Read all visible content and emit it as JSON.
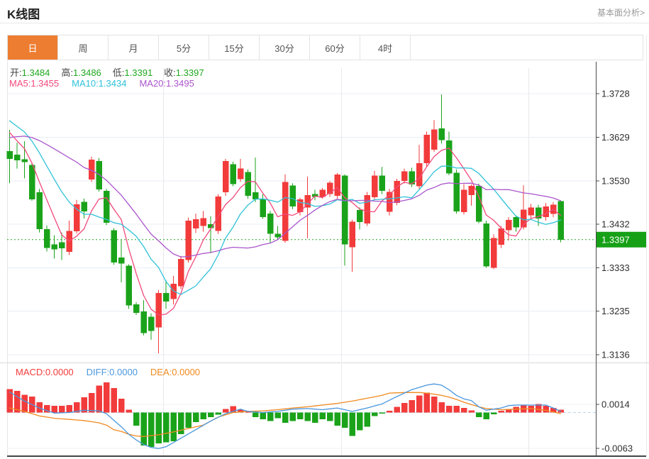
{
  "header": {
    "title": "K线图",
    "link": "基本面分析>"
  },
  "tabs": {
    "items": [
      "日",
      "周",
      "月",
      "5分",
      "15分",
      "30分",
      "60分",
      "4时"
    ],
    "selected_index": 0
  },
  "info": {
    "ohlc": [
      {
        "label": "开:",
        "value": "1.3484"
      },
      {
        "label": "高:",
        "value": "1.3486"
      },
      {
        "label": "低:",
        "value": "1.3391"
      },
      {
        "label": "收:",
        "value": "1.3397"
      }
    ],
    "ma": [
      {
        "label": "MA5:",
        "value": "1.3455"
      },
      {
        "label": "MA10:",
        "value": "1.3434"
      },
      {
        "label": "MA20:",
        "value": "1.3495"
      }
    ],
    "macd": [
      {
        "label": "MACD:",
        "value": "0.0000"
      },
      {
        "label": "DIFF:",
        "value": "0.0000"
      },
      {
        "label": "DEA:",
        "value": "0.0000"
      }
    ]
  },
  "colors": {
    "up": "#f23b3b",
    "down": "#1aa31a",
    "ohlc_value": "#1fa81f",
    "ma": [
      "#f2497c",
      "#2fc2d8",
      "#aa55cc"
    ],
    "macd_labels": [
      "#f23b3b",
      "#4a97dd",
      "#f08a20"
    ],
    "diff_line": "#4a97dd",
    "dea_line": "#f08a20",
    "badge": "#16a016",
    "tab_selected": "#ed7d31",
    "grid_h": "#e8eef5",
    "grid_v": "#e8e8e8",
    "axis_line": "#4a4a4a",
    "zero_dash": "#b9d4ea",
    "price_dotted": "#2aa52a"
  },
  "chart_data": {
    "type": "candlestick",
    "title": "K线图",
    "y_axis_labels": [
      "1.3728",
      "1.3629",
      "1.3530",
      "1.3432",
      "1.3333",
      "1.3235",
      "1.3136"
    ],
    "y_range": [
      1.3136,
      1.3728
    ],
    "current_price": 1.3397,
    "current_price_label": "1.3397",
    "ohlc_current": {
      "open": 1.3484,
      "high": 1.3486,
      "low": 1.3391,
      "close": 1.3397
    },
    "ma_values": {
      "MA5": 1.3455,
      "MA10": 1.3434,
      "MA20": 1.3495
    },
    "candles": [
      [
        1.3598,
        1.3646,
        1.3525,
        1.358
      ],
      [
        1.359,
        1.3617,
        1.3558,
        1.3577
      ],
      [
        1.3579,
        1.362,
        1.3536,
        1.3573
      ],
      [
        1.3566,
        1.357,
        1.3485,
        1.3488
      ],
      [
        1.3504,
        1.3512,
        1.3413,
        1.3421
      ],
      [
        1.3421,
        1.3429,
        1.337,
        1.3378
      ],
      [
        1.3386,
        1.3407,
        1.3354,
        1.3375
      ],
      [
        1.3391,
        1.3413,
        1.3351,
        1.3377
      ],
      [
        1.3369,
        1.344,
        1.3362,
        1.3417
      ],
      [
        1.3416,
        1.3487,
        1.3411,
        1.3477
      ],
      [
        1.3483,
        1.349,
        1.3445,
        1.3461
      ],
      [
        1.3533,
        1.3585,
        1.3528,
        1.3578
      ],
      [
        1.3575,
        1.3582,
        1.3506,
        1.3511
      ],
      [
        1.3508,
        1.3512,
        1.343,
        1.3435
      ],
      [
        1.3418,
        1.3423,
        1.334,
        1.3345
      ],
      [
        1.3356,
        1.3397,
        1.33,
        1.3343
      ],
      [
        1.3338,
        1.3341,
        1.324,
        1.3248
      ],
      [
        1.325,
        1.3255,
        1.3226,
        1.3231
      ],
      [
        1.3234,
        1.326,
        1.318,
        1.3185
      ],
      [
        1.3222,
        1.323,
        1.317,
        1.319
      ],
      [
        1.3198,
        1.3283,
        1.3139,
        1.3276
      ],
      [
        1.3276,
        1.3305,
        1.324,
        1.3257
      ],
      [
        1.3262,
        1.3315,
        1.325,
        1.3297
      ],
      [
        1.3291,
        1.336,
        1.3285,
        1.3353
      ],
      [
        1.3351,
        1.3447,
        1.3345,
        1.344
      ],
      [
        1.3422,
        1.3456,
        1.3412,
        1.3443
      ],
      [
        1.3428,
        1.3462,
        1.3415,
        1.3446
      ],
      [
        1.3432,
        1.345,
        1.3366,
        1.3423
      ],
      [
        1.3417,
        1.35,
        1.341,
        1.3495
      ],
      [
        1.3504,
        1.358,
        1.3496,
        1.3575
      ],
      [
        1.3568,
        1.3574,
        1.3518,
        1.3523
      ],
      [
        1.3534,
        1.358,
        1.3528,
        1.3558
      ],
      [
        1.355,
        1.3556,
        1.349,
        1.3496
      ],
      [
        1.3504,
        1.3583,
        1.3482,
        1.3488
      ],
      [
        1.3488,
        1.35,
        1.3444,
        1.3448
      ],
      [
        1.3456,
        1.3462,
        1.3389,
        1.341
      ],
      [
        1.341,
        1.3428,
        1.3396,
        1.3402
      ],
      [
        1.3394,
        1.3545,
        1.339,
        1.3528
      ],
      [
        1.352,
        1.3525,
        1.3466,
        1.3472
      ],
      [
        1.3459,
        1.3492,
        1.3452,
        1.3488
      ],
      [
        1.347,
        1.354,
        1.34,
        1.3498
      ],
      [
        1.35,
        1.351,
        1.3486,
        1.3494
      ],
      [
        1.3494,
        1.3514,
        1.349,
        1.351
      ],
      [
        1.35,
        1.353,
        1.3494,
        1.3526
      ],
      [
        1.3496,
        1.3548,
        1.349,
        1.3545
      ],
      [
        1.3542,
        1.3545,
        1.3338,
        1.3386
      ],
      [
        1.338,
        1.3442,
        1.3324,
        1.3438
      ],
      [
        1.3464,
        1.347,
        1.342,
        1.3437
      ],
      [
        1.3434,
        1.3505,
        1.3428,
        1.3498
      ],
      [
        1.3493,
        1.3553,
        1.3488,
        1.3542
      ],
      [
        1.3542,
        1.3562,
        1.35,
        1.3508
      ],
      [
        1.346,
        1.3512,
        1.3452,
        1.3505
      ],
      [
        1.348,
        1.3535,
        1.3475,
        1.353
      ],
      [
        1.353,
        1.3558,
        1.3524,
        1.3552
      ],
      [
        1.3552,
        1.356,
        1.3516,
        1.3522
      ],
      [
        1.3518,
        1.3612,
        1.3512,
        1.357
      ],
      [
        1.357,
        1.3642,
        1.3562,
        1.3635
      ],
      [
        1.3601,
        1.3668,
        1.3596,
        1.3647
      ],
      [
        1.3649,
        1.3726,
        1.3615,
        1.3623
      ],
      [
        1.3622,
        1.3642,
        1.3543,
        1.3547
      ],
      [
        1.3549,
        1.3556,
        1.3456,
        1.3461
      ],
      [
        1.3459,
        1.3523,
        1.3454,
        1.351
      ],
      [
        1.3498,
        1.3522,
        1.3474,
        1.3519
      ],
      [
        1.3519,
        1.3524,
        1.3434,
        1.3438
      ],
      [
        1.3434,
        1.344,
        1.3333,
        1.3336
      ],
      [
        1.3333,
        1.3409,
        1.333,
        1.3401
      ],
      [
        1.3385,
        1.3428,
        1.3378,
        1.3422
      ],
      [
        1.3418,
        1.3448,
        1.3395,
        1.3442
      ],
      [
        1.3448,
        1.3452,
        1.3415,
        1.3425
      ],
      [
        1.3425,
        1.352,
        1.342,
        1.3465
      ],
      [
        1.3452,
        1.3478,
        1.3445,
        1.347
      ],
      [
        1.347,
        1.3476,
        1.3428,
        1.3445
      ],
      [
        1.3448,
        1.348,
        1.344,
        1.3472
      ],
      [
        1.3455,
        1.3482,
        1.3448,
        1.3476
      ],
      [
        1.3484,
        1.3486,
        1.3391,
        1.3397
      ]
    ],
    "ma_periods": [
      5,
      10,
      20
    ],
    "ma_seed": [
      1.3535,
      1.354,
      1.3548,
      1.3552,
      1.3558,
      1.3562,
      1.3568,
      1.358,
      1.362,
      1.3672,
      1.3706,
      1.3704,
      1.37,
      1.3694,
      1.3688,
      1.368,
      1.3672,
      1.3662,
      1.365,
      1.3636
    ],
    "macd": {
      "y_axis_labels": [
        "0.0014",
        "-0.0063"
      ],
      "y_values": [
        0.0014,
        -0.0063
      ],
      "hist": [
        0.0041,
        0.0038,
        0.0031,
        0.0028,
        0.0018,
        0.0013,
        0.0012,
        0.0012,
        0.0013,
        0.0018,
        0.0027,
        0.0034,
        0.0047,
        0.0053,
        0.0043,
        0.0024,
        0.0005,
        -0.0023,
        -0.0058,
        -0.006,
        -0.0054,
        -0.0052,
        -0.005,
        -0.0038,
        -0.0027,
        -0.0017,
        -0.0012,
        -0.0008,
        -0.0004,
        0.0006,
        0.0011,
        0.0005,
        0.0002,
        -0.0008,
        -0.0012,
        -0.0015,
        -0.001,
        -0.0018,
        -0.0015,
        -0.0012,
        -0.0015,
        -0.0018,
        -0.0012,
        -0.0015,
        -0.0023,
        -0.0027,
        -0.0041,
        -0.0031,
        -0.0025,
        -0.0006,
        -0.0002,
        0.0003,
        0.001,
        0.0017,
        0.0022,
        0.003,
        0.0035,
        0.0028,
        0.0018,
        0.0012,
        0.0012,
        0.0008,
        0.0004,
        -0.0008,
        -0.0012,
        -0.0003,
        0.0003,
        0.0006,
        0.001,
        0.0013,
        0.0012,
        0.0015,
        0.0012,
        0.0008,
        0.0005
      ],
      "diff_points": [
        [
          0,
          0.0036
        ],
        [
          2,
          0.002
        ],
        [
          4,
          0.0008
        ],
        [
          6,
          -0.0001
        ],
        [
          8,
          0.0
        ],
        [
          10,
          0.0004
        ],
        [
          12,
          0.0003
        ],
        [
          13,
          -0.0002
        ],
        [
          15,
          -0.0025
        ],
        [
          16,
          -0.0038
        ],
        [
          17,
          -0.0048
        ],
        [
          18,
          -0.0056
        ],
        [
          19,
          -0.0061
        ],
        [
          20,
          -0.0063
        ],
        [
          21,
          -0.006
        ],
        [
          23,
          -0.0045
        ],
        [
          25,
          -0.003
        ],
        [
          27,
          -0.0015
        ],
        [
          29,
          -0.0002
        ],
        [
          31,
          0.0006
        ],
        [
          32,
          0.0002
        ],
        [
          34,
          0.0
        ],
        [
          36,
          0.0002
        ],
        [
          38,
          0.0006
        ],
        [
          40,
          0.0007
        ],
        [
          42,
          0.0005
        ],
        [
          44,
          0.0008
        ],
        [
          46,
          0.0002
        ],
        [
          48,
          0.0008
        ],
        [
          50,
          0.0015
        ],
        [
          52,
          0.0028
        ],
        [
          54,
          0.004
        ],
        [
          56,
          0.0048
        ],
        [
          57,
          0.005
        ],
        [
          58,
          0.0048
        ],
        [
          59,
          0.004
        ],
        [
          60,
          0.003
        ],
        [
          61,
          0.0024
        ],
        [
          62,
          0.0021
        ],
        [
          63,
          0.001
        ],
        [
          64,
          0.0004
        ],
        [
          66,
          0.0008
        ],
        [
          67,
          0.0012
        ],
        [
          68,
          0.0013
        ],
        [
          70,
          0.0013
        ],
        [
          72,
          0.0013
        ],
        [
          73,
          0.0008
        ],
        [
          74,
          0.0002
        ]
      ],
      "dea_points": [
        [
          0,
          0.0008
        ],
        [
          2,
          0.0002
        ],
        [
          4,
          -0.0006
        ],
        [
          6,
          -0.001
        ],
        [
          8,
          -0.0012
        ],
        [
          10,
          -0.0014
        ],
        [
          12,
          -0.0018
        ],
        [
          13,
          -0.0022
        ],
        [
          14,
          -0.003
        ],
        [
          15,
          -0.0033
        ],
        [
          16,
          -0.0038
        ],
        [
          17,
          -0.0041
        ],
        [
          18,
          -0.0042
        ],
        [
          20,
          -0.0039
        ],
        [
          22,
          -0.0034
        ],
        [
          24,
          -0.0028
        ],
        [
          26,
          -0.0022
        ],
        [
          28,
          -0.0008
        ],
        [
          30,
          0.0
        ],
        [
          32,
          0.0002
        ],
        [
          34,
          0.0003
        ],
        [
          36,
          0.0005
        ],
        [
          38,
          0.0008
        ],
        [
          40,
          0.001
        ],
        [
          42,
          0.0013
        ],
        [
          44,
          0.0016
        ],
        [
          46,
          0.002
        ],
        [
          48,
          0.0025
        ],
        [
          50,
          0.003
        ],
        [
          51,
          0.0034
        ],
        [
          53,
          0.0035
        ],
        [
          55,
          0.0035
        ],
        [
          56,
          0.0034
        ],
        [
          57,
          0.0032
        ],
        [
          58,
          0.003
        ],
        [
          59,
          0.0027
        ],
        [
          60,
          0.0023
        ],
        [
          61,
          0.0018
        ],
        [
          62,
          0.0014
        ],
        [
          63,
          0.001
        ],
        [
          64,
          0.0007
        ],
        [
          66,
          0.0005
        ],
        [
          68,
          0.0006
        ],
        [
          70,
          0.0007
        ],
        [
          72,
          0.0004
        ],
        [
          74,
          -0.0002
        ]
      ]
    }
  }
}
